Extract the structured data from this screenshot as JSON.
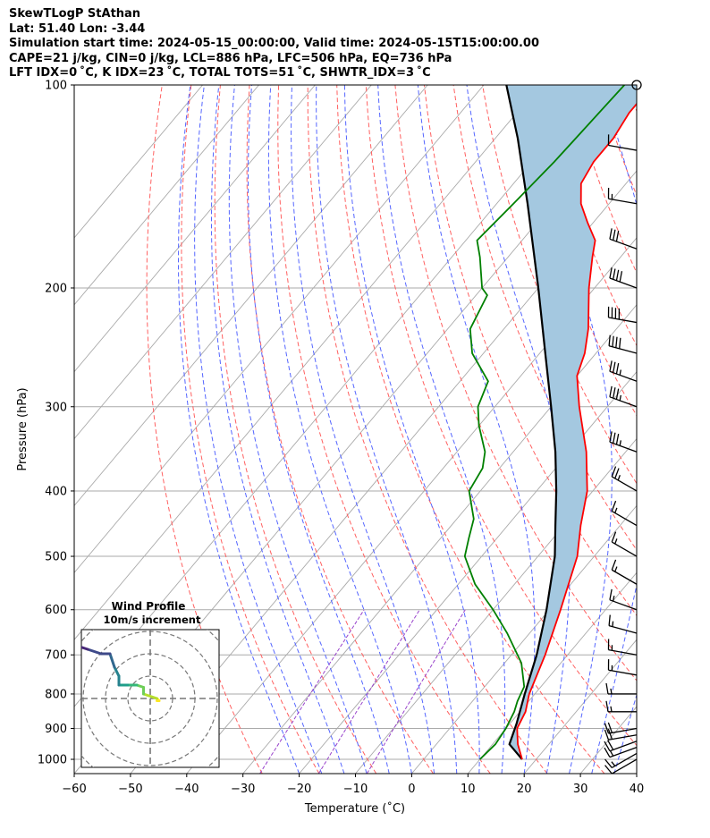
{
  "header": {
    "title": "SkewTLogP StAthan",
    "location": "Lat: 51.40   Lon: -3.44",
    "times": "Simulation start time: 2024-05-15_00:00:00, Valid time: 2024-05-15T15:00:00.00",
    "indices1": "CAPE=21 j/kg, CIN=0 j/kg, LCL=886 hPa, LFC=506 hPa, EQ=736 hPa",
    "indices2": "LFT IDX=0 ˚C, K IDX=23 ˚C, TOTAL TOTS=51 ˚C, SHWTR_IDX=3 ˚C"
  },
  "chart_data": {
    "type": "line",
    "subtype": "skew-T log-P",
    "xlabel": "Temperature (˚C)",
    "ylabel": "Pressure (hPa)",
    "xlim": [
      -60,
      40
    ],
    "plim": [
      1050,
      100
    ],
    "x_ticks": [
      "−60",
      "−50",
      "−40",
      "−30",
      "−20",
      "−10",
      "0",
      "10",
      "20",
      "30",
      "40"
    ],
    "p_ticks": [
      1000,
      900,
      800,
      700,
      600,
      500,
      400,
      300,
      200,
      100
    ],
    "colors": {
      "temperature": "#ff0000",
      "dewpoint": "#008000",
      "parcel": "#000000",
      "cape_fill": "#a4c8e0",
      "isotherm": "#aaaaaa",
      "dry_adiabat": "#ff6060",
      "moist_adiabat": "#5566ff",
      "mixing_ratio": "#9944cc"
    },
    "series": [
      {
        "key": "temperature",
        "points": [
          [
            1000,
            17.5
          ],
          [
            950,
            14.5
          ],
          [
            900,
            12.0
          ],
          [
            850,
            11.0
          ],
          [
            800,
            9.0
          ],
          [
            700,
            6.0
          ],
          [
            600,
            2.0
          ],
          [
            500,
            -3.0
          ],
          [
            450,
            -7.0
          ],
          [
            400,
            -11.0
          ],
          [
            350,
            -17.0
          ],
          [
            300,
            -25.0
          ],
          [
            270,
            -30.0
          ],
          [
            250,
            -32.0
          ],
          [
            230,
            -35.0
          ],
          [
            200,
            -41.0
          ],
          [
            180,
            -45.0
          ],
          [
            170,
            -47.0
          ],
          [
            160,
            -51.0
          ],
          [
            150,
            -55.0
          ],
          [
            140,
            -58.0
          ],
          [
            130,
            -59.0
          ],
          [
            120,
            -59.0
          ],
          [
            110,
            -60.0
          ],
          [
            100,
            -60.0
          ]
        ]
      },
      {
        "key": "dewpoint",
        "points": [
          [
            1000,
            10.0
          ],
          [
            950,
            10.5
          ],
          [
            900,
            10.0
          ],
          [
            850,
            9.0
          ],
          [
            820,
            8.0
          ],
          [
            780,
            7.0
          ],
          [
            720,
            3.0
          ],
          [
            650,
            -4.0
          ],
          [
            600,
            -10.0
          ],
          [
            550,
            -17.0
          ],
          [
            500,
            -23.0
          ],
          [
            470,
            -25.0
          ],
          [
            440,
            -27.0
          ],
          [
            400,
            -32.0
          ],
          [
            370,
            -33.0
          ],
          [
            350,
            -35.0
          ],
          [
            320,
            -40.0
          ],
          [
            300,
            -43.0
          ],
          [
            275,
            -45.0
          ],
          [
            250,
            -52.0
          ],
          [
            230,
            -56.0
          ],
          [
            205,
            -58.0
          ],
          [
            200,
            -60.0
          ],
          [
            180,
            -65.0
          ],
          [
            170,
            -68.0
          ],
          [
            150,
            -67.0
          ],
          [
            130,
            -66.0
          ],
          [
            100,
            -65.0
          ]
        ]
      },
      {
        "key": "parcel",
        "points": [
          [
            1000,
            17.5
          ],
          [
            950,
            13.0
          ],
          [
            886,
            11.2
          ],
          [
            800,
            8.2
          ],
          [
            700,
            4.5
          ],
          [
            600,
            -0.5
          ],
          [
            500,
            -7.0
          ],
          [
            450,
            -11.5
          ],
          [
            400,
            -16.5
          ],
          [
            350,
            -22.5
          ],
          [
            300,
            -30.0
          ],
          [
            250,
            -39.0
          ],
          [
            200,
            -50.0
          ],
          [
            150,
            -64.5
          ],
          [
            120,
            -76.0
          ],
          [
            100,
            -86.0
          ]
        ]
      }
    ],
    "wind_barbs": {
      "pressures": [
        1000,
        980,
        960,
        940,
        920,
        900,
        850,
        800,
        750,
        700,
        650,
        600,
        550,
        500,
        450,
        400,
        350,
        300,
        275,
        250,
        225,
        200,
        175,
        150,
        125,
        100
      ],
      "speed_kt": [
        10,
        15,
        15,
        20,
        20,
        20,
        15,
        15,
        15,
        15,
        15,
        15,
        15,
        15,
        15,
        25,
        35,
        35,
        35,
        40,
        40,
        40,
        30,
        15,
        10,
        0
      ],
      "direction_deg": [
        240,
        240,
        250,
        250,
        260,
        260,
        270,
        270,
        280,
        280,
        285,
        290,
        300,
        300,
        300,
        300,
        290,
        290,
        290,
        285,
        280,
        290,
        290,
        280,
        280,
        0
      ]
    },
    "hodograph": {
      "title": "Wind Profile",
      "subtitle": "10m/s increment",
      "rings_ms": [
        10,
        20,
        30,
        40
      ],
      "uv_ms": [
        [
          3,
          -1
        ],
        [
          4,
          -1
        ],
        [
          3,
          0
        ],
        [
          -3,
          2
        ],
        [
          -3,
          5
        ],
        [
          -6,
          6
        ],
        [
          -10,
          6
        ],
        [
          -14,
          6
        ],
        [
          -14,
          10
        ],
        [
          -16,
          14
        ],
        [
          -18,
          20
        ],
        [
          -22,
          20
        ],
        [
          -28,
          22
        ],
        [
          -34,
          24
        ],
        [
          -36,
          25
        ]
      ]
    }
  }
}
